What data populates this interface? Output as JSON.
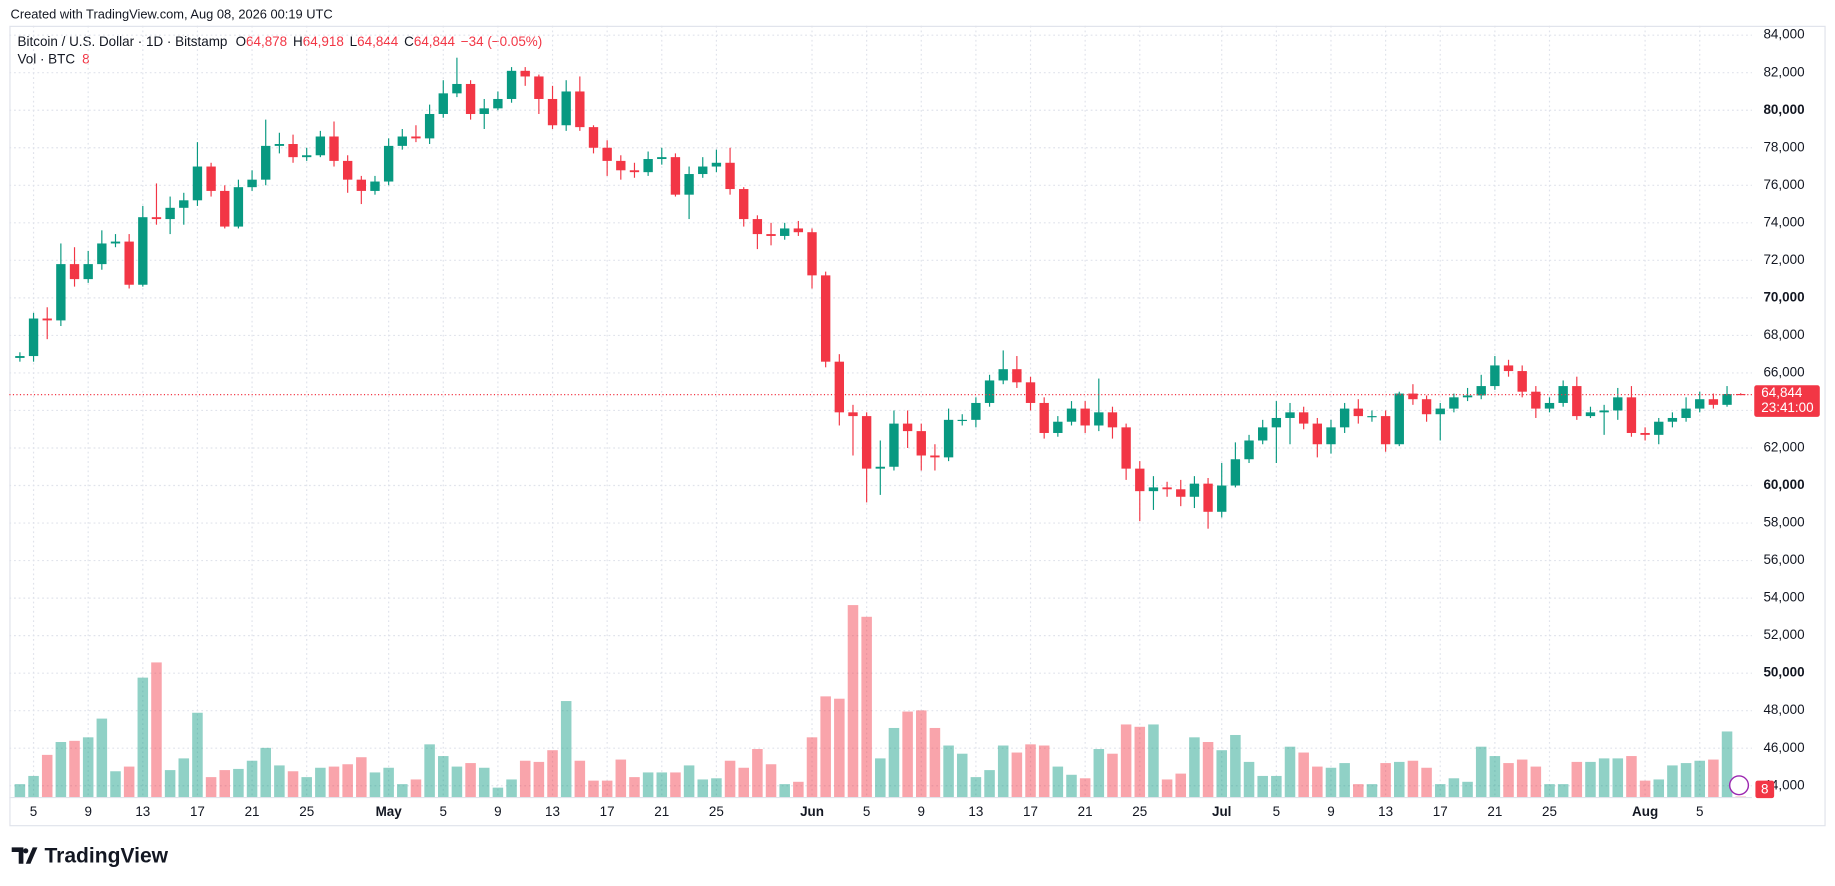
{
  "header": "Created with TradingView.com, Aug 08, 2026 00:19 UTC",
  "footer": "TradingView",
  "chart_data": {
    "type": "candlestick",
    "symbol": "Bitcoin / U.S. Dollar · 1D · Bitstamp",
    "legend_keys": [
      "O",
      "H",
      "L",
      "C"
    ],
    "legend_values": [
      {
        "value": 64878,
        "label": "64,878"
      },
      {
        "value": 64918,
        "label": "64,918"
      },
      {
        "value": 64844,
        "label": "64,844"
      },
      {
        "value": 64844,
        "label": "64,844"
      }
    ],
    "change_label": "−34 (−0.05%)",
    "volume_title": "Vol · BTC",
    "up_color": "#089981",
    "down_color": "#f23645",
    "grid": true,
    "categories": [
      null,
      "5",
      null,
      null,
      null,
      "9",
      null,
      null,
      null,
      "13",
      null,
      null,
      null,
      "17",
      null,
      null,
      null,
      "21",
      null,
      null,
      null,
      "25",
      null,
      null,
      null,
      null,
      null,
      "May",
      null,
      null,
      null,
      "5",
      null,
      null,
      null,
      "9",
      null,
      null,
      null,
      "13",
      null,
      null,
      null,
      "17",
      null,
      null,
      null,
      "21",
      null,
      null,
      null,
      "25",
      null,
      null,
      null,
      null,
      null,
      null,
      "Jun",
      null,
      null,
      null,
      "5",
      null,
      null,
      null,
      "9",
      null,
      null,
      null,
      "13",
      null,
      null,
      null,
      "17",
      null,
      null,
      null,
      "21",
      null,
      null,
      null,
      "25",
      null,
      null,
      null,
      null,
      null,
      "Jul",
      null,
      null,
      null,
      "5",
      null,
      null,
      null,
      "9",
      null,
      null,
      null,
      "13",
      null,
      null,
      null,
      "17",
      null,
      null,
      null,
      "21",
      null,
      null,
      null,
      "25",
      null,
      null,
      null,
      null,
      null,
      null,
      "Aug",
      null,
      null,
      null,
      "5",
      null,
      null,
      null
    ],
    "open": [
      66800,
      66900,
      68900,
      68800,
      71800,
      71000,
      71800,
      72900,
      73000,
      70700,
      74300,
      74200,
      74800,
      75200,
      77000,
      75700,
      73800,
      75900,
      76300,
      78100,
      78200,
      77500,
      77600,
      78600,
      77300,
      76300,
      75700,
      76200,
      78100,
      78600,
      78500,
      79800,
      80900,
      81400,
      79800,
      80100,
      80600,
      82100,
      81800,
      80600,
      79200,
      81000,
      79100,
      78000,
      77300,
      76800,
      76700,
      77400,
      77500,
      75500,
      76600,
      77000,
      77200,
      75800,
      74200,
      73400,
      73300,
      73700,
      73500,
      71200,
      66600,
      63900,
      63700,
      60900,
      61000,
      63300,
      62900,
      61600,
      61500,
      63500,
      63500,
      64400,
      65600,
      66200,
      65500,
      64400,
      62800,
      63400,
      64100,
      63200,
      63900,
      63100,
      60900,
      59700,
      59900,
      59800,
      59400,
      60100,
      58600,
      60000,
      61400,
      62400,
      63100,
      63600,
      63900,
      63300,
      62200,
      63100,
      64100,
      63700,
      63700,
      62200,
      64900,
      64600,
      63800,
      64100,
      64700,
      64800,
      65300,
      66400,
      66100,
      65000,
      64100,
      64400,
      65300,
      63700,
      63900,
      64000,
      64700,
      62800,
      62700,
      63400,
      63600,
      64100,
      64600,
      64300,
      64878
    ],
    "high": [
      67100,
      69200,
      69500,
      72900,
      72700,
      72500,
      73600,
      73400,
      73400,
      74900,
      76100,
      75400,
      75600,
      78300,
      77200,
      76000,
      76300,
      76800,
      79500,
      78800,
      78700,
      78000,
      78900,
      79400,
      77600,
      76500,
      76500,
      78500,
      79000,
      79200,
      80300,
      81600,
      82800,
      81600,
      80600,
      81000,
      82300,
      82300,
      81900,
      81300,
      81600,
      81800,
      79200,
      78400,
      77600,
      77200,
      77800,
      78000,
      77700,
      77000,
      77500,
      77900,
      78000,
      75900,
      74400,
      74000,
      74000,
      74100,
      73700,
      71400,
      67000,
      64300,
      63900,
      62400,
      64000,
      64000,
      63300,
      62200,
      64100,
      63800,
      64700,
      65900,
      67200,
      66900,
      65800,
      64700,
      63700,
      64500,
      64500,
      65700,
      64200,
      63300,
      61300,
      60500,
      60200,
      60300,
      60500,
      60400,
      61200,
      62300,
      62700,
      63500,
      64500,
      64400,
      64200,
      63600,
      63500,
      64400,
      64600,
      64000,
      64000,
      65000,
      65400,
      64800,
      64400,
      64900,
      65200,
      65900,
      66900,
      66700,
      66400,
      65300,
      64700,
      65600,
      65800,
      64200,
      64300,
      65200,
      65300,
      63100,
      63600,
      63900,
      64700,
      65000,
      64900,
      65300,
      64918
    ],
    "low": [
      66600,
      66600,
      67800,
      68500,
      70600,
      70800,
      71500,
      72700,
      70500,
      70600,
      73900,
      73400,
      73900,
      74900,
      75400,
      73700,
      73700,
      75700,
      76000,
      77700,
      77200,
      77300,
      77500,
      77000,
      75600,
      75000,
      75500,
      76000,
      77900,
      78300,
      78200,
      79600,
      80700,
      79500,
      79000,
      80000,
      80400,
      81300,
      79800,
      79000,
      78900,
      78900,
      77700,
      76500,
      76300,
      76400,
      76500,
      77100,
      75400,
      74200,
      76400,
      76700,
      75500,
      73800,
      72600,
      72800,
      73100,
      73300,
      70500,
      66300,
      63200,
      61600,
      59100,
      59500,
      60800,
      62000,
      60800,
      60800,
      61300,
      63200,
      63100,
      64200,
      65400,
      65200,
      64000,
      62500,
      62600,
      63200,
      62800,
      62900,
      62500,
      60300,
      58100,
      58700,
      59400,
      58900,
      58800,
      57700,
      58300,
      59900,
      61200,
      62200,
      61200,
      62200,
      63000,
      61500,
      61700,
      62800,
      63300,
      63400,
      61800,
      62100,
      64300,
      63400,
      62400,
      63900,
      64500,
      64600,
      65100,
      65800,
      64700,
      63600,
      63900,
      64200,
      63500,
      63600,
      62700,
      63500,
      62600,
      62400,
      62200,
      63100,
      63400,
      63900,
      64100,
      64200,
      64844
    ],
    "close": [
      66900,
      68900,
      68800,
      71800,
      71000,
      71800,
      72900,
      73000,
      70700,
      74300,
      74200,
      74800,
      75200,
      77000,
      75700,
      73800,
      75900,
      76300,
      78100,
      78200,
      77500,
      77600,
      78600,
      77300,
      76300,
      75700,
      76200,
      78100,
      78600,
      78500,
      79800,
      80900,
      81400,
      79800,
      80100,
      80600,
      82100,
      81800,
      80600,
      79200,
      81000,
      79100,
      78000,
      77300,
      76800,
      76700,
      77400,
      77500,
      75500,
      76600,
      77000,
      77200,
      75800,
      74200,
      73400,
      73300,
      73700,
      73500,
      71200,
      66600,
      63900,
      63700,
      60900,
      61000,
      63300,
      62900,
      61600,
      61500,
      63500,
      63500,
      64400,
      65600,
      66200,
      65500,
      64400,
      62800,
      63400,
      64100,
      63200,
      63900,
      63100,
      60900,
      59700,
      59900,
      59800,
      59400,
      60100,
      58600,
      60000,
      61400,
      62400,
      63100,
      63600,
      63900,
      63300,
      62200,
      63100,
      64100,
      63700,
      63700,
      62200,
      64900,
      64600,
      63800,
      64100,
      64700,
      64800,
      65300,
      66400,
      66100,
      65000,
      64100,
      64400,
      65300,
      63700,
      63900,
      64000,
      64700,
      62800,
      62700,
      63400,
      63600,
      64100,
      64600,
      64300,
      64878,
      64844
    ],
    "volume": [
      220,
      360,
      720,
      940,
      960,
      1020,
      1340,
      440,
      520,
      2040,
      2300,
      460,
      660,
      1440,
      340,
      460,
      480,
      620,
      840,
      540,
      440,
      340,
      500,
      520,
      560,
      680,
      420,
      500,
      220,
      300,
      900,
      700,
      520,
      580,
      500,
      160,
      300,
      620,
      600,
      800,
      1640,
      620,
      280,
      280,
      640,
      340,
      420,
      420,
      420,
      540,
      300,
      320,
      620,
      500,
      820,
      560,
      220,
      260,
      1020,
      1720,
      1680,
      3280,
      3080,
      660,
      1180,
      1460,
      1480,
      1180,
      880,
      740,
      340,
      460,
      880,
      760,
      900,
      880,
      520,
      380,
      320,
      820,
      740,
      1240,
      1200,
      1240,
      300,
      400,
      1020,
      940,
      800,
      1060,
      600,
      360,
      360,
      860,
      760,
      520,
      500,
      580,
      220,
      220,
      580,
      600,
      620,
      500,
      220,
      320,
      260,
      860,
      700,
      580,
      640,
      520,
      220,
      220,
      600,
      600,
      660,
      660,
      700,
      280,
      300,
      540,
      580,
      620,
      640,
      1120,
      8
    ],
    "ylim": [
      43400,
      84500
    ],
    "yticks": [
      {
        "value": 44000,
        "label": "44,000"
      },
      {
        "value": 46000,
        "label": "46,000"
      },
      {
        "value": 48000,
        "label": "48,000"
      },
      {
        "value": 50000,
        "label": "50,000"
      },
      {
        "value": 52000,
        "label": "52,000"
      },
      {
        "value": 54000,
        "label": "54,000"
      },
      {
        "value": 56000,
        "label": "56,000"
      },
      {
        "value": 58000,
        "label": "58,000"
      },
      {
        "value": 60000,
        "label": "60,000"
      },
      {
        "value": 62000,
        "label": "62,000"
      },
      {
        "value": 64000,
        "label": "64,000"
      },
      {
        "value": 66000,
        "label": "66,000"
      },
      {
        "value": 68000,
        "label": "68,000"
      },
      {
        "value": 70000,
        "label": "70,000"
      },
      {
        "value": 72000,
        "label": "72,000"
      },
      {
        "value": 74000,
        "label": "74,000"
      },
      {
        "value": 76000,
        "label": "76,000"
      },
      {
        "value": 78000,
        "label": "78,000"
      },
      {
        "value": 80000,
        "label": "80,000"
      },
      {
        "value": 82000,
        "label": "82,000"
      },
      {
        "value": 84000,
        "label": "84,000"
      }
    ],
    "last_price": {
      "value": 64844,
      "label": "64,844"
    },
    "countdown": "23:41:00"
  }
}
